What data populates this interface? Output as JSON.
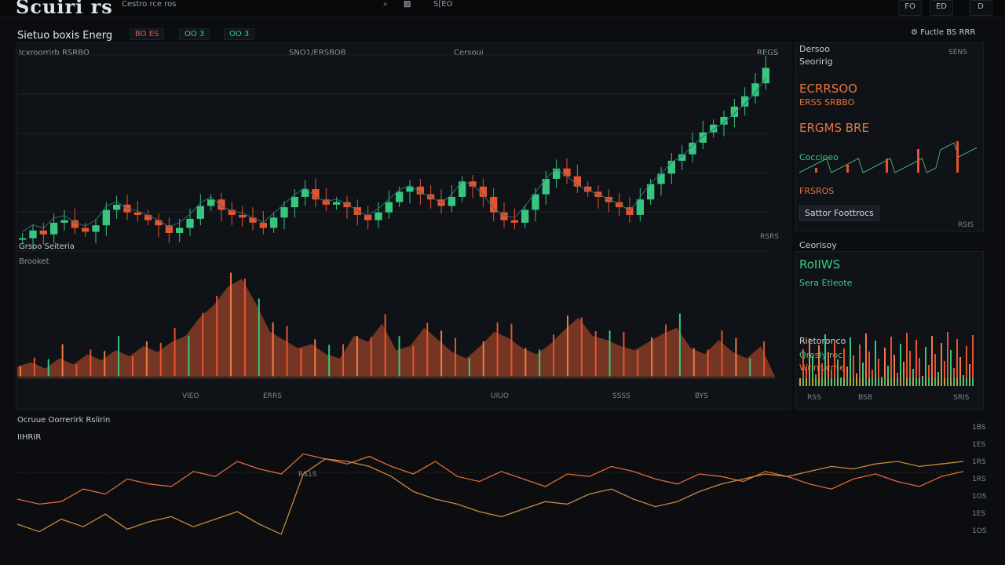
{
  "topbar": {
    "logo": "Scuiri rs",
    "subtitle": "Cestro rce  ros",
    "search_icon": "search-icon",
    "chart_icon": "chart-icon",
    "mode": "S[EO",
    "btn1": "FO",
    "btn2": "ED",
    "btn3": "D"
  },
  "main_chart": {
    "title": "Sietuo boxis Energ",
    "tabs": [
      "BO ES",
      "OO 3",
      "OO 3"
    ],
    "label_left": "Icxroorrirb  RSRBO",
    "label_mid": "SNO1/ERSBOB",
    "label_right": "Cersoui",
    "label_far": "REGS",
    "corner_label": "RSRS",
    "volume_title": "Grsoo Seiteria",
    "volume_sub": "Brooket",
    "volume_axis": [
      "VIEO",
      "ERRS",
      "UIUO",
      "SSSS",
      "BYS"
    ],
    "bottom_title": "Ocruue Oorrerirk  Rslirin",
    "bottom_sub": "IIHRIR",
    "bottom_marker": "RS1S",
    "bottom_ticks": [
      "1BS",
      "1ES",
      "1RS",
      "1RS",
      "1OS",
      "1ES",
      "1OS"
    ]
  },
  "side_panel": {
    "header": "Dersoo",
    "sub": "Seoririg",
    "value_tag": "SENS",
    "row1": "ECRRSOO",
    "row2": "ERSS SRBBO",
    "row3": "ERGMS BRE",
    "row4": "Coccioeo",
    "row5": "FRSROS",
    "button": "Sattor Foottrocs",
    "foot": "RSIS",
    "section2_title": "Ceorisoy",
    "section2_big": "RoIIWS",
    "section2_sub": "Sera Etleote",
    "section2_a": "Rietoronco",
    "section2_b": "Qreslyiroc",
    "section2_c": "Wrirrucrhe",
    "section2_axis": [
      "RSS",
      "BSB",
      "SRIS"
    ]
  },
  "top_right": {
    "label": "Fuctle BS  RRR",
    "icon": "settings-icon"
  },
  "colors": {
    "up": "#37c57f",
    "down": "#e6532f",
    "line": "#e06a3a",
    "aux": "#c9893f",
    "grid": "#1c2128"
  },
  "chart_data": [
    {
      "type": "candlestick",
      "title": "Sietuo boxis Energ",
      "candles_close": [
        30,
        36,
        33,
        42,
        44,
        38,
        35,
        40,
        52,
        56,
        50,
        48,
        44,
        40,
        34,
        38,
        45,
        55,
        60,
        52,
        48,
        46,
        42,
        38,
        46,
        54,
        62,
        68,
        60,
        56,
        58,
        54,
        48,
        44,
        50,
        58,
        66,
        70,
        64,
        60,
        55,
        62,
        74,
        70,
        62,
        50,
        44,
        42,
        52,
        64,
        76,
        84,
        78,
        70,
        66,
        62,
        58,
        54,
        48,
        60,
        72,
        80,
        90,
        95,
        104,
        112,
        118,
        124,
        132,
        140,
        150,
        162
      ],
      "volume_heights": [
        10,
        14,
        8,
        18,
        12,
        22,
        16,
        26,
        20,
        30,
        24,
        34,
        40,
        58,
        70,
        88,
        96,
        72,
        44,
        36,
        28,
        32,
        22,
        18,
        40,
        34,
        52,
        26,
        30,
        48,
        36,
        24,
        18,
        30,
        44,
        38,
        28,
        22,
        32,
        46,
        58,
        40,
        36,
        30,
        26,
        34,
        42,
        48,
        28,
        22,
        36,
        24,
        18,
        30
      ]
    },
    {
      "type": "line",
      "title": "Ocruue Oorrerirk  Rslirin",
      "series": [
        {
          "values": [
            40,
            36,
            38,
            48,
            44,
            56,
            52,
            50,
            62,
            58,
            70,
            64,
            60,
            76,
            72,
            68,
            74,
            66,
            60,
            70,
            58,
            54,
            62,
            56,
            50,
            60,
            58,
            66,
            62,
            56,
            52,
            60,
            58,
            54,
            62,
            58,
            52,
            48,
            56,
            60,
            54,
            50,
            58,
            62
          ]
        },
        {
          "values": [
            20,
            14,
            24,
            18,
            28,
            16,
            22,
            26,
            18,
            24,
            30,
            20,
            12,
            60,
            72,
            70,
            66,
            58,
            46,
            40,
            36,
            30,
            26,
            32,
            38,
            36,
            44,
            48,
            40,
            34,
            38,
            46,
            52,
            56,
            60,
            58,
            62,
            66,
            64,
            68,
            70,
            66,
            68,
            70
          ]
        }
      ]
    }
  ]
}
